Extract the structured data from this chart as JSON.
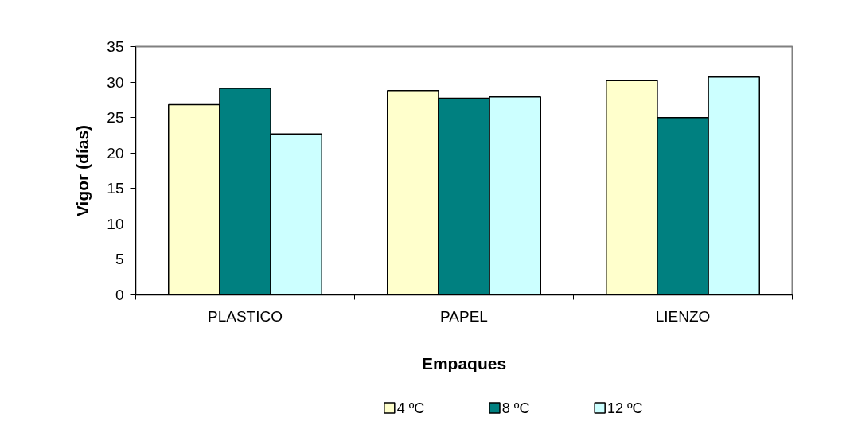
{
  "chart_data": {
    "type": "bar",
    "xlabel": "Empaques",
    "ylabel": "Vigor (días)",
    "categories": [
      "PLASTICO",
      "PAPEL",
      "LIENZO"
    ],
    "series": [
      {
        "name": "4 ºC",
        "color": "#ffffcc",
        "values": [
          26.8,
          28.8,
          30.2
        ]
      },
      {
        "name": "8 ºC",
        "color": "#008080",
        "values": [
          29.1,
          27.7,
          25.0
        ]
      },
      {
        "name": "12 ºC",
        "color": "#ccffff",
        "values": [
          22.7,
          27.9,
          30.7
        ]
      }
    ],
    "ylim": [
      0,
      35
    ],
    "yticks": [
      0,
      5,
      10,
      15,
      20,
      25,
      30,
      35
    ],
    "grid": false,
    "legend": "bottom"
  }
}
